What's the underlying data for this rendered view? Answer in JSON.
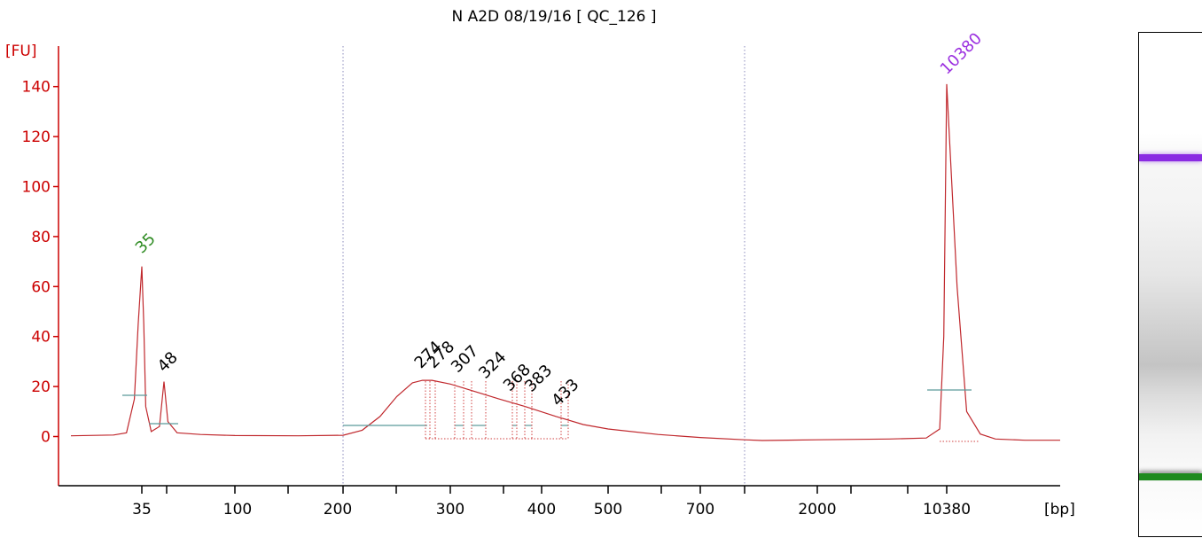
{
  "chart_data": {
    "type": "line",
    "title": "N A2D 08/19/16  [ QC_126 ]",
    "ylabel": "[FU]",
    "xlabel": "[bp]",
    "ylim": [
      -18,
      155
    ],
    "yticks": [
      0,
      20,
      40,
      60,
      80,
      100,
      120,
      140
    ],
    "xtick_labels": [
      "35",
      "100",
      "200",
      "300",
      "400",
      "500",
      "700",
      "2000",
      "10380"
    ],
    "peak_labels": [
      {
        "label": "35",
        "x_bp": 35,
        "y_fu": 68,
        "color": "#2e8b22"
      },
      {
        "label": "48",
        "x_bp": 48,
        "y_fu": 22,
        "color": "#000000"
      },
      {
        "label": "274",
        "x_bp": 274,
        "y_fu": 22,
        "color": "#000000"
      },
      {
        "label": "278",
        "x_bp": 278,
        "y_fu": 22,
        "color": "#000000"
      },
      {
        "label": "307",
        "x_bp": 307,
        "y_fu": 21,
        "color": "#000000"
      },
      {
        "label": "324",
        "x_bp": 324,
        "y_fu": 20,
        "color": "#000000"
      },
      {
        "label": "368",
        "x_bp": 368,
        "y_fu": 15,
        "color": "#000000"
      },
      {
        "label": "383",
        "x_bp": 383,
        "y_fu": 14,
        "color": "#000000"
      },
      {
        "label": "433",
        "x_bp": 433,
        "y_fu": 9,
        "color": "#000000"
      },
      {
        "label": "10380",
        "x_bp": 10380,
        "y_fu": 141,
        "color": "#9b30e0"
      }
    ],
    "grid": false,
    "series": [
      {
        "color": "#c0282d",
        "points": [
          [
            20,
            0.3
          ],
          [
            28,
            0.6
          ],
          [
            31,
            1.5
          ],
          [
            33,
            15
          ],
          [
            34,
            45
          ],
          [
            35,
            68
          ],
          [
            36,
            45
          ],
          [
            37,
            12
          ],
          [
            40,
            2
          ],
          [
            45,
            4
          ],
          [
            48,
            22
          ],
          [
            50,
            6
          ],
          [
            55,
            1.5
          ],
          [
            70,
            0.8
          ],
          [
            100,
            0.4
          ],
          [
            150,
            0.3
          ],
          [
            200,
            0.5
          ],
          [
            215,
            2.5
          ],
          [
            230,
            8
          ],
          [
            245,
            16
          ],
          [
            260,
            21.5
          ],
          [
            270,
            22.5
          ],
          [
            280,
            22.5
          ],
          [
            300,
            21
          ],
          [
            320,
            18.5
          ],
          [
            350,
            15
          ],
          [
            380,
            12
          ],
          [
            420,
            8
          ],
          [
            460,
            4.8
          ],
          [
            500,
            3
          ],
          [
            600,
            0.8
          ],
          [
            700,
            -0.4
          ],
          [
            800,
            -1.3
          ],
          [
            1000,
            -1.6
          ],
          [
            2000,
            -1.3
          ],
          [
            5000,
            -1
          ],
          [
            8000,
            -0.6
          ],
          [
            9500,
            3
          ],
          [
            10000,
            40
          ],
          [
            10380,
            141
          ],
          [
            10800,
            60
          ],
          [
            11200,
            10
          ],
          [
            11800,
            1
          ],
          [
            12500,
            -1
          ],
          [
            14000,
            -1.5
          ],
          [
            16000,
            -1.5
          ]
        ]
      }
    ]
  },
  "gel": {
    "upper_marker_color": "#8a2be2",
    "lower_marker_color": "#1e8a1e"
  }
}
